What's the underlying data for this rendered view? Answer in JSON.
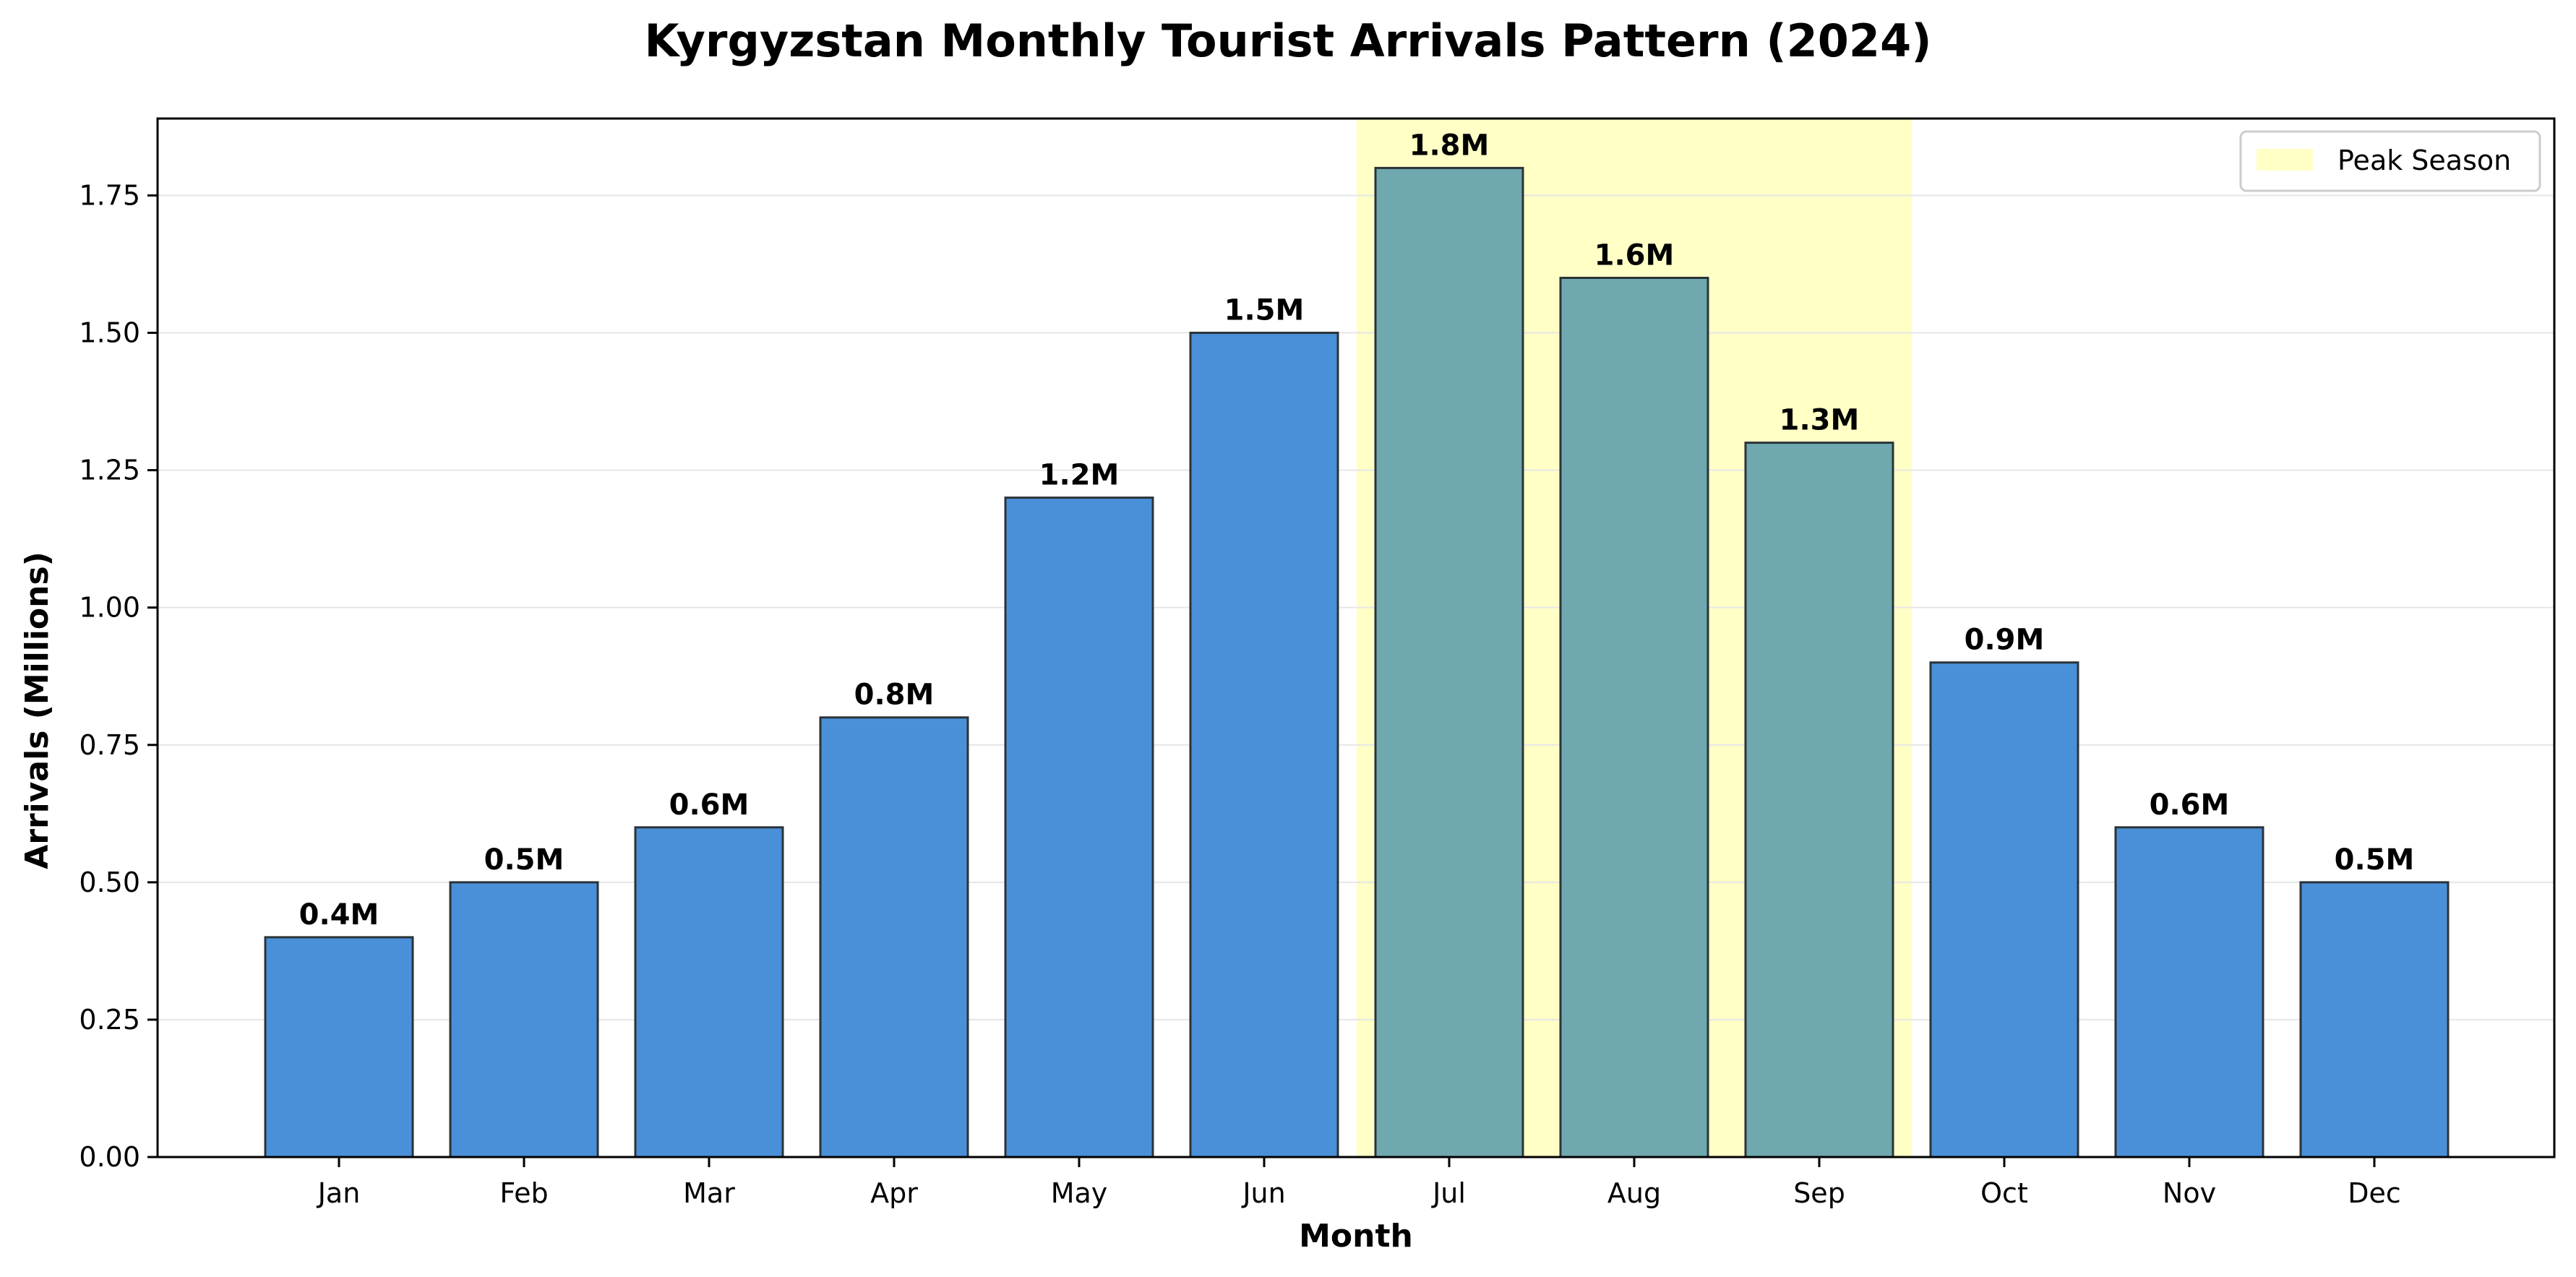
{
  "chart_data": {
    "type": "bar",
    "title": "Kyrgyzstan Monthly Tourist Arrivals Pattern (2024)",
    "xlabel": "Month",
    "ylabel": "Arrivals (Millions)",
    "categories": [
      "Jan",
      "Feb",
      "Mar",
      "Apr",
      "May",
      "Jun",
      "Jul",
      "Aug",
      "Sep",
      "Oct",
      "Nov",
      "Dec"
    ],
    "values": [
      0.4,
      0.5,
      0.6,
      0.8,
      1.2,
      1.5,
      1.8,
      1.6,
      1.3,
      0.9,
      0.6,
      0.5
    ],
    "data_labels": [
      "0.4M",
      "0.5M",
      "0.6M",
      "0.8M",
      "1.2M",
      "1.5M",
      "1.8M",
      "1.6M",
      "1.3M",
      "0.9M",
      "0.6M",
      "0.5M"
    ],
    "ylim": [
      0,
      1.89
    ],
    "yticks": [
      0.0,
      0.25,
      0.5,
      0.75,
      1.0,
      1.25,
      1.5,
      1.75
    ],
    "ytick_labels": [
      "0.00",
      "0.25",
      "0.50",
      "0.75",
      "1.00",
      "1.25",
      "1.50",
      "1.75"
    ],
    "grid": "horizontal",
    "highlight": {
      "label": "Peak Season",
      "categories": [
        "Jul",
        "Aug",
        "Sep"
      ],
      "color": "#ffffc6"
    },
    "legend": {
      "placement": "top-right",
      "entries": [
        "Peak Season"
      ]
    },
    "colors": {
      "bar": "#4a90d9",
      "bar_peak": "#6fa8af",
      "bar_edge": "#2b3338",
      "grid": "#e6e6e6",
      "axis": "#000000"
    }
  }
}
